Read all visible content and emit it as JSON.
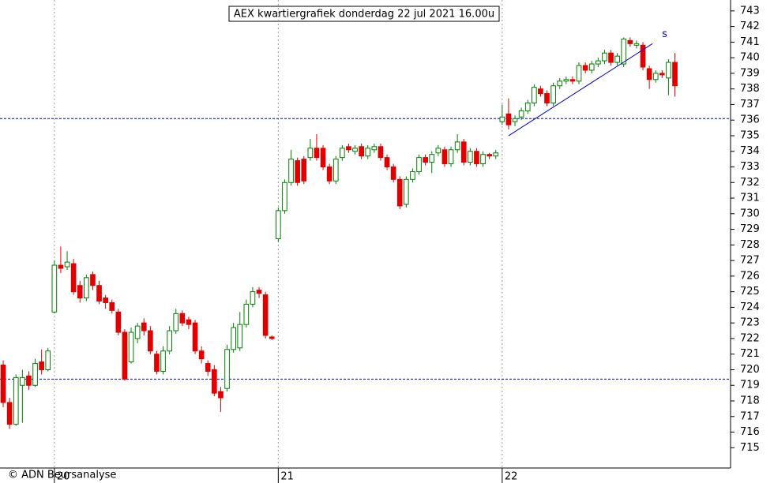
{
  "chart_data": {
    "type": "candlestick",
    "title": "AEX kwartiergrafiek donderdag 22 jul 2021 16.00u",
    "credit": "© ADN Beursanalyse",
    "up_color": "#008000",
    "down_color": "#e00000",
    "line_color": "#0000c0",
    "x": [
      0,
      1,
      2,
      3,
      4,
      5,
      6,
      7,
      8,
      9,
      10,
      11,
      12,
      13,
      14,
      15,
      16,
      17,
      18,
      19,
      20,
      21,
      22,
      23,
      24,
      25,
      26,
      27,
      28,
      29,
      30,
      31,
      32,
      33,
      34,
      35,
      36,
      37,
      38,
      39,
      40,
      41,
      42,
      43,
      44,
      45,
      46,
      47,
      48,
      49,
      50,
      51,
      52,
      53,
      54,
      55,
      56,
      57,
      58,
      59,
      60,
      61,
      62,
      63,
      64,
      65,
      66,
      67,
      68,
      69,
      70,
      71,
      72,
      73,
      74,
      75,
      76,
      77,
      78,
      79,
      80,
      81,
      82,
      83,
      84,
      85,
      86,
      87,
      88,
      89,
      90,
      91,
      92,
      93,
      94,
      95,
      96,
      97,
      98,
      99,
      100,
      101,
      102,
      103,
      104,
      105
    ],
    "open": [
      720.3,
      717.9,
      716.5,
      719.0,
      719.6,
      719.0,
      720.5,
      720.0,
      723.7,
      726.7,
      726.6,
      726.8,
      725.4,
      724.6,
      726.1,
      725.4,
      724.6,
      724.3,
      723.7,
      722.4,
      720.5,
      722.0,
      723.0,
      722.5,
      721.0,
      719.9,
      721.2,
      722.5,
      723.6,
      723.2,
      723.0,
      721.2,
      720.4,
      720.0,
      718.6,
      718.8,
      721.3,
      721.4,
      722.9,
      724.2,
      725.1,
      724.8,
      722.1,
      728.4,
      730.2,
      732.0,
      733.4,
      733.5,
      733.6,
      734.2,
      734.2,
      733.0,
      732.1,
      733.6,
      734.3,
      734.0,
      734.3,
      733.7,
      734.1,
      734.3,
      733.6,
      733.0,
      732.2,
      730.6,
      732.2,
      732.7,
      733.6,
      733.3,
      733.9,
      734.1,
      733.2,
      734.1,
      734.6,
      733.3,
      734.0,
      733.2,
      733.8,
      733.7,
      735.9,
      736.4,
      735.9,
      736.2,
      736.6,
      737.1,
      738.0,
      737.7,
      737.1,
      738.2,
      738.5,
      738.6,
      738.5,
      739.5,
      739.2,
      739.6,
      739.8,
      740.3,
      739.7,
      739.6,
      741.1,
      740.8,
      740.8,
      739.3,
      738.6,
      739.0,
      738.7,
      739.7
    ],
    "high": [
      720.6,
      718.2,
      719.7,
      720.0,
      719.9,
      720.7,
      721.3,
      721.4,
      727.0,
      727.9,
      727.6,
      727.1,
      725.7,
      726.1,
      726.3,
      725.7,
      724.8,
      724.5,
      723.9,
      722.6,
      722.7,
      723.0,
      723.3,
      722.8,
      721.2,
      721.5,
      722.8,
      723.9,
      723.8,
      723.4,
      723.2,
      721.5,
      720.6,
      720.3,
      718.9,
      721.6,
      723.0,
      723.7,
      724.5,
      725.3,
      725.3,
      725.0,
      722.2,
      730.4,
      732.2,
      734.1,
      733.6,
      733.7,
      734.8,
      735.1,
      734.4,
      733.2,
      733.7,
      734.4,
      734.5,
      734.4,
      734.5,
      734.4,
      734.5,
      734.5,
      733.8,
      733.2,
      732.4,
      732.4,
      732.9,
      733.8,
      733.8,
      734.0,
      734.4,
      734.3,
      734.3,
      735.1,
      734.8,
      734.2,
      734.2,
      734.0,
      733.9,
      734.1,
      737.0,
      737.4,
      736.3,
      736.8,
      737.3,
      738.3,
      738.2,
      737.9,
      738.4,
      738.7,
      738.8,
      738.8,
      739.7,
      739.7,
      739.8,
      740.0,
      740.5,
      740.5,
      740.3,
      741.3,
      741.3,
      741.1,
      741.0,
      739.5,
      739.2,
      739.2,
      739.9,
      740.3
    ],
    "low": [
      717.6,
      716.2,
      716.4,
      716.6,
      718.7,
      718.9,
      719.7,
      719.9,
      723.6,
      726.2,
      726.4,
      724.8,
      724.3,
      724.4,
      725.1,
      724.2,
      723.9,
      723.6,
      722.2,
      719.3,
      720.4,
      721.7,
      722.2,
      721.0,
      719.7,
      719.7,
      721.0,
      722.3,
      722.8,
      722.6,
      721.0,
      720.4,
      719.6,
      718.3,
      717.3,
      718.6,
      721.1,
      721.2,
      722.7,
      724.0,
      724.6,
      722.0,
      721.9,
      728.2,
      730.0,
      731.8,
      731.8,
      731.9,
      733.4,
      733.4,
      732.8,
      731.9,
      731.9,
      733.4,
      733.9,
      733.8,
      733.5,
      733.5,
      733.9,
      733.4,
      732.8,
      732.0,
      730.3,
      730.4,
      732.0,
      732.5,
      733.1,
      732.6,
      733.7,
      733.0,
      733.0,
      733.9,
      733.1,
      733.1,
      733.0,
      733.0,
      733.5,
      733.5,
      735.7,
      735.4,
      735.6,
      736.0,
      736.4,
      736.9,
      737.5,
      736.9,
      736.9,
      738.0,
      738.3,
      738.3,
      738.3,
      739.0,
      739.0,
      739.4,
      739.6,
      739.5,
      739.5,
      739.4,
      740.7,
      740.6,
      739.2,
      738.0,
      738.4,
      738.7,
      737.6,
      737.5
    ],
    "close": [
      717.9,
      716.5,
      719.5,
      719.5,
      719.0,
      720.4,
      720.0,
      721.2,
      726.7,
      726.5,
      726.9,
      725.0,
      724.6,
      725.9,
      725.4,
      724.4,
      724.3,
      723.8,
      722.4,
      719.4,
      722.4,
      722.8,
      722.5,
      721.2,
      719.9,
      721.2,
      722.5,
      723.6,
      723.0,
      722.9,
      721.2,
      720.7,
      719.9,
      718.5,
      718.2,
      721.3,
      722.7,
      722.9,
      724.2,
      725.0,
      724.9,
      722.2,
      722.0,
      730.2,
      732.0,
      733.5,
      732.0,
      732.1,
      734.2,
      733.6,
      733.0,
      732.1,
      733.5,
      734.2,
      734.1,
      734.2,
      733.7,
      734.2,
      734.3,
      733.6,
      733.0,
      732.2,
      730.5,
      732.2,
      732.7,
      733.6,
      733.3,
      733.8,
      734.2,
      733.2,
      734.1,
      734.6,
      733.3,
      734.0,
      733.2,
      733.8,
      733.7,
      733.9,
      736.2,
      735.7,
      736.1,
      736.6,
      737.1,
      738.1,
      737.7,
      737.1,
      738.2,
      738.5,
      738.6,
      738.5,
      739.5,
      739.2,
      739.6,
      739.8,
      740.3,
      739.7,
      740.1,
      741.2,
      740.9,
      740.9,
      739.4,
      738.6,
      739.0,
      738.9,
      739.7,
      738.2
    ],
    "xlim": [
      -0.5,
      113.7
    ],
    "xticks": [
      {
        "value": 8,
        "label": "20"
      },
      {
        "value": 43,
        "label": "21"
      },
      {
        "value": 78,
        "label": "22"
      }
    ],
    "ylim": [
      713.7,
      743.7
    ],
    "yticks": [
      715,
      716,
      717,
      718,
      719,
      720,
      721,
      722,
      723,
      724,
      725,
      726,
      727,
      728,
      729,
      730,
      731,
      732,
      733,
      734,
      735,
      736,
      737,
      738,
      739,
      740,
      741,
      742,
      743
    ],
    "hlines": [
      736.1,
      719.4
    ],
    "trendline": {
      "x": [
        79,
        101.5
      ],
      "y": [
        735.0,
        740.9
      ],
      "label": "s"
    }
  }
}
